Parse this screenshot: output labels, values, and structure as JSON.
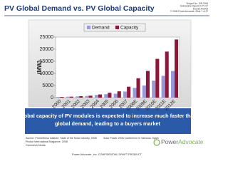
{
  "header": {
    "title": "PV Global Demand vs. PV Global Capacity",
    "meta": [
      "Subject No. S/N 2008",
      "Deliverable Report D-PV-07",
      "Excel/CH/2008",
      "© 2008 PowerAdvocate, Slide 7 of 27"
    ]
  },
  "chart_data": {
    "type": "bar",
    "categories": [
      "2000",
      "2001",
      "2002",
      "2003",
      "2004",
      "2005",
      "2006",
      "2007",
      "2008E",
      "2009E",
      "2010E",
      "2011E",
      "2012E"
    ],
    "series": [
      {
        "name": "Demand",
        "color": "#9a9ad8",
        "values": [
          300,
          400,
          500,
          700,
          1100,
          1400,
          1600,
          2500,
          4000,
          5000,
          7000,
          9000,
          11000
        ]
      },
      {
        "name": "Capacity",
        "color": "#8b1a3a",
        "values": [
          300,
          400,
          600,
          800,
          1300,
          2000,
          2600,
          4500,
          8000,
          11000,
          16000,
          19000,
          24000
        ]
      }
    ],
    "y_label": "(MW)",
    "ylim": [
      0,
      25000
    ],
    "yticks": [
      0,
      5000,
      10000,
      15000,
      20000,
      25000
    ],
    "grid": false
  },
  "banner": {
    "lines": [
      "Global capacity of PV modules is expected to increase much faster than",
      "global demand, leading to a buyers market"
    ]
  },
  "sources": [
    "Source: Prometheus Institute, State of the Solar Industry, 2008",
    "Photon International Magazine, 2008",
    "Greentech Media"
  ],
  "conference": "Solar Power 2008 Conference in Valencia, Spain",
  "footer": "Power Advocate, Inc. CONFIDENTIAL DRAFT PRODUCT",
  "logo": {
    "part1": "Power",
    "part2": "Advocate"
  }
}
